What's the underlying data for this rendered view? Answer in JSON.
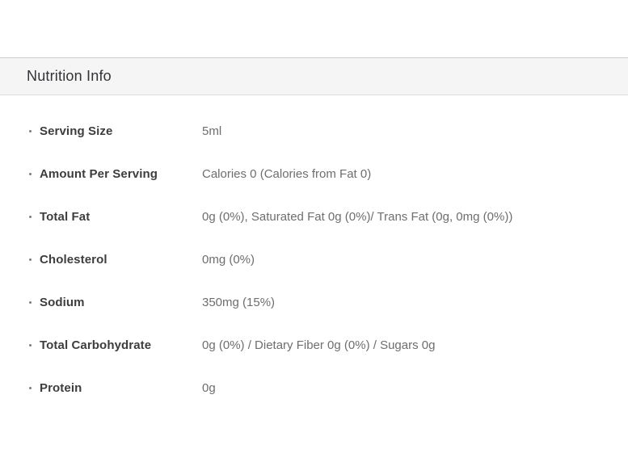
{
  "section": {
    "title": "Nutrition Info"
  },
  "rows": [
    {
      "label": "Serving Size",
      "value": "5ml"
    },
    {
      "label": "Amount Per Serving",
      "value": "Calories 0 (Calories from Fat 0)"
    },
    {
      "label": "Total Fat",
      "value": "0g (0%), Saturated Fat 0g (0%)/ Trans Fat (0g, 0mg (0%))"
    },
    {
      "label": "Cholesterol",
      "value": "0mg (0%)"
    },
    {
      "label": "Sodium",
      "value": "350mg (15%)"
    },
    {
      "label": "Total Carbohydrate",
      "value": "0g (0%) / Dietary Fiber 0g (0%) / Sugars 0g"
    },
    {
      "label": "Protein",
      "value": "0g"
    }
  ],
  "colors": {
    "header_background": "#f5f5f5",
    "header_border_top": "#cccccc",
    "header_border_bottom": "#dddddd",
    "label_text": "#3d3d3d",
    "value_text": "#6e6e6e"
  }
}
